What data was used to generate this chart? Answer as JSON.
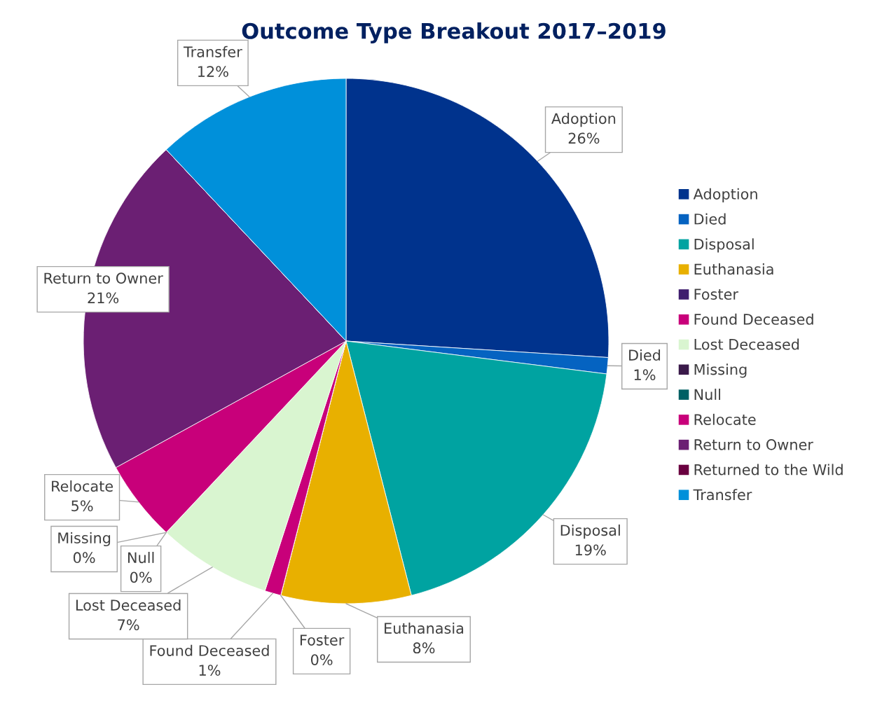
{
  "chart_data": {
    "type": "pie",
    "title": "Outcome Type Breakout 2017–2019",
    "categories": [
      "Adoption",
      "Died",
      "Disposal",
      "Euthanasia",
      "Foster",
      "Found Deceased",
      "Lost Deceased",
      "Missing",
      "Null",
      "Relocate",
      "Return to Owner",
      "Returned to the Wild",
      "Transfer"
    ],
    "values": [
      26,
      1,
      19,
      8,
      0,
      1,
      7,
      0,
      0,
      5,
      21,
      0,
      12
    ],
    "value_labels": [
      "26%",
      "1%",
      "19%",
      "8%",
      "0%",
      "1%",
      "7%",
      "0%",
      "0%",
      "5%",
      "21%",
      null,
      "12%"
    ],
    "colors": [
      "#00338d",
      "#0563c1",
      "#00a3a1",
      "#e8b000",
      "#3f1d6e",
      "#c8007a",
      "#d9f5d0",
      "#3a1a4a",
      "#006064",
      "#c8007a",
      "#6b1f73",
      "#6a0040",
      "#0090da"
    ],
    "legend": "right"
  }
}
